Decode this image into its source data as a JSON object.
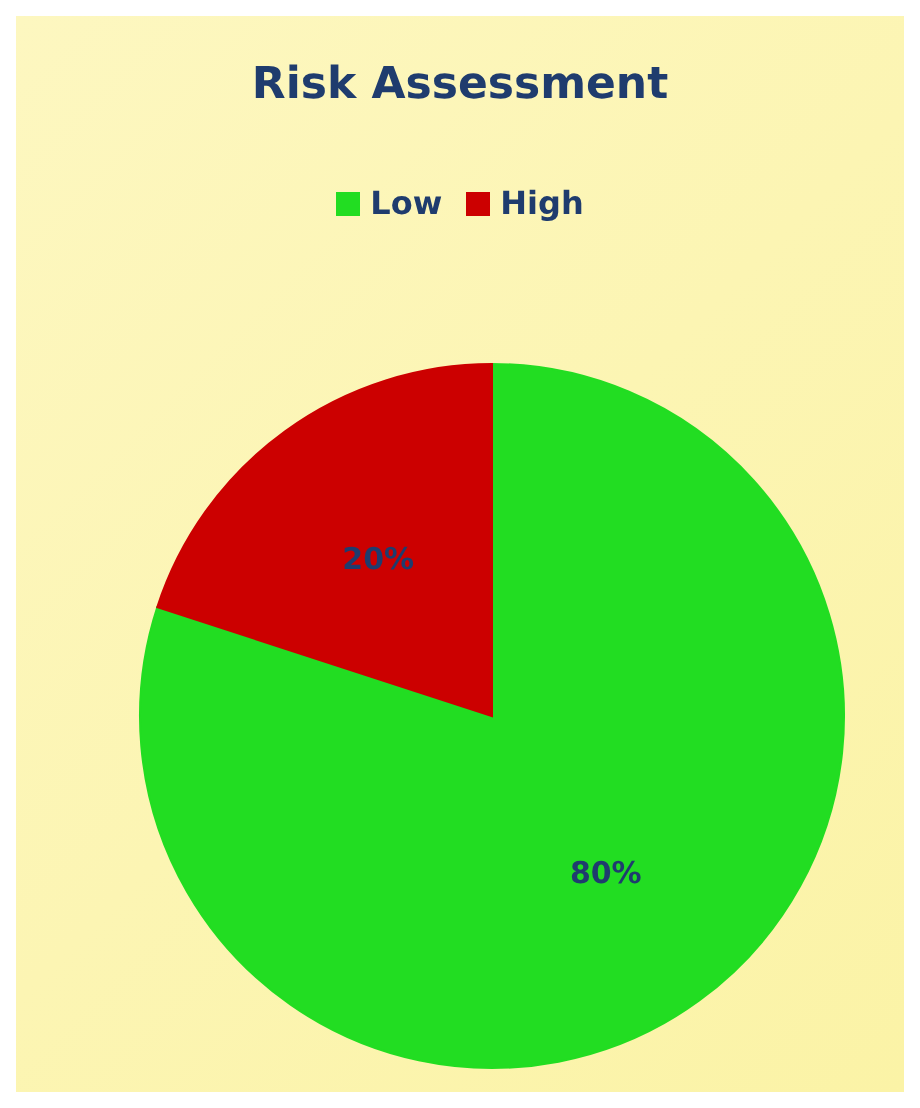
{
  "chart_data": {
    "type": "pie",
    "title": "Risk Assessment",
    "categories": [
      "Low",
      "High"
    ],
    "values": [
      80,
      20
    ],
    "colors": [
      "#22dd22",
      "#cc0000"
    ],
    "value_labels": [
      "80%",
      "20%"
    ],
    "legend": "top"
  }
}
